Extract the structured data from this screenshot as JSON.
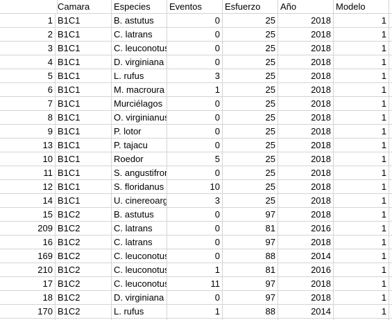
{
  "header": [
    "",
    "Camara",
    "Especies",
    "Eventos",
    "Esfuerzo",
    "Año",
    "Modelo"
  ],
  "rows": [
    [
      "1",
      "B1C1",
      "B. astutus",
      "0",
      "25",
      "2018",
      "1"
    ],
    [
      "2",
      "B1C1",
      "C. latrans",
      "0",
      "25",
      "2018",
      "1"
    ],
    [
      "3",
      "B1C1",
      "C. leuconotus",
      "0",
      "25",
      "2018",
      "1"
    ],
    [
      "4",
      "B1C1",
      "D. virginiana",
      "0",
      "25",
      "2018",
      "1"
    ],
    [
      "5",
      "B1C1",
      "L. rufus",
      "3",
      "25",
      "2018",
      "1"
    ],
    [
      "6",
      "B1C1",
      "M. macroura",
      "1",
      "25",
      "2018",
      "1"
    ],
    [
      "7",
      "B1C1",
      "Murciélagos",
      "0",
      "25",
      "2018",
      "1"
    ],
    [
      "8",
      "B1C1",
      "O. virginianus",
      "0",
      "25",
      "2018",
      "1"
    ],
    [
      "9",
      "B1C1",
      "P. lotor",
      "0",
      "25",
      "2018",
      "1"
    ],
    [
      "13",
      "B1C1",
      "P. tajacu",
      "0",
      "25",
      "2018",
      "1"
    ],
    [
      "10",
      "B1C1",
      "Roedor",
      "5",
      "25",
      "2018",
      "1"
    ],
    [
      "11",
      "B1C1",
      "S. angustifrons",
      "0",
      "25",
      "2018",
      "1"
    ],
    [
      "12",
      "B1C1",
      "S. floridanus",
      "10",
      "25",
      "2018",
      "1"
    ],
    [
      "14",
      "B1C1",
      "U. cinereoargenteus",
      "3",
      "25",
      "2018",
      "1"
    ],
    [
      "15",
      "B1C2",
      "B. astutus",
      "0",
      "97",
      "2018",
      "1"
    ],
    [
      "209",
      "B1C2",
      "C. latrans",
      "0",
      "81",
      "2016",
      "1"
    ],
    [
      "16",
      "B1C2",
      "C. latrans",
      "0",
      "97",
      "2018",
      "1"
    ],
    [
      "169",
      "B1C2",
      "C. leuconotus",
      "0",
      "88",
      "2014",
      "1"
    ],
    [
      "210",
      "B1C2",
      "C. leuconotus",
      "1",
      "81",
      "2016",
      "1"
    ],
    [
      "17",
      "B1C2",
      "C. leuconotus",
      "11",
      "97",
      "2018",
      "1"
    ],
    [
      "18",
      "B1C2",
      "D. virginiana",
      "0",
      "97",
      "2018",
      "1"
    ],
    [
      "170",
      "B1C2",
      "L. rufus",
      "1",
      "88",
      "2014",
      "1"
    ],
    [
      "",
      "",
      "",
      "",
      "",
      "",
      ""
    ]
  ]
}
